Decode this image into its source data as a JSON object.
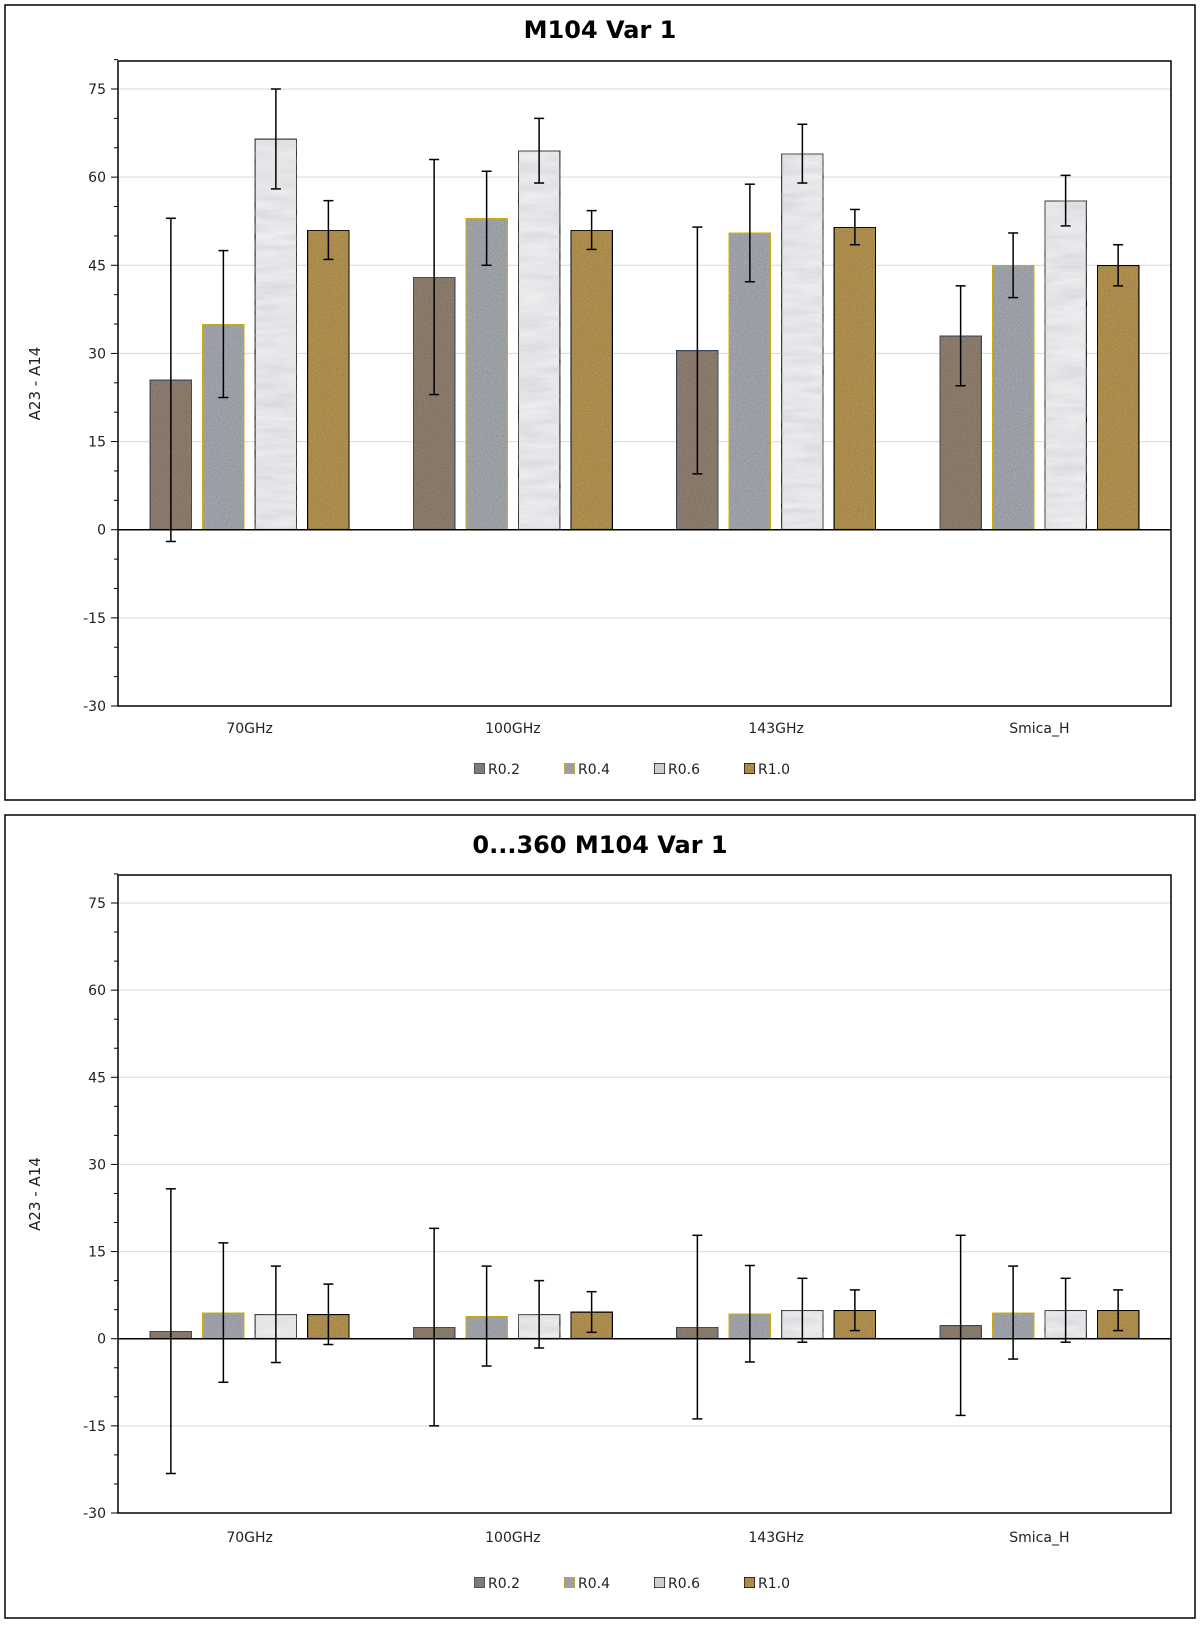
{
  "chart_data": [
    {
      "type": "bar",
      "title": "M104  Var 1",
      "ylabel": "A23 - A14",
      "xlabel": "",
      "ylim": [
        -30,
        80
      ],
      "yticks": [
        -30,
        -15,
        0,
        15,
        30,
        45,
        60,
        75
      ],
      "grid": true,
      "legend_position": "bottom",
      "categories": [
        "70GHz",
        "100GHz",
        "143GHz",
        "Smica_H"
      ],
      "series": [
        {
          "name": "R0.2",
          "values": [
            25.5,
            43,
            30.5,
            33
          ],
          "errors": [
            27.5,
            20,
            21,
            8.5
          ]
        },
        {
          "name": "R0.4",
          "values": [
            35,
            53,
            50.5,
            45
          ],
          "errors": [
            12.5,
            8,
            8.3,
            5.5
          ]
        },
        {
          "name": "R0.6",
          "values": [
            66.5,
            64.5,
            64,
            56
          ],
          "errors": [
            8.5,
            5.5,
            5,
            4.3
          ]
        },
        {
          "name": "R1.0",
          "values": [
            51,
            51,
            51.5,
            45
          ],
          "errors": [
            5,
            3.3,
            3,
            3.5
          ]
        }
      ]
    },
    {
      "type": "bar",
      "title": "0...360  M104  Var 1",
      "ylabel": "A23 - A14",
      "xlabel": "",
      "ylim": [
        -30,
        80
      ],
      "yticks": [
        -30,
        -15,
        0,
        15,
        30,
        45,
        60,
        75
      ],
      "grid": true,
      "legend_position": "bottom",
      "categories": [
        "70GHz",
        "100GHz",
        "143GHz",
        "Smica_H"
      ],
      "series": [
        {
          "name": "R0.2",
          "values": [
            1.3,
            2,
            2,
            2.3
          ],
          "errors": [
            24.5,
            17,
            15.8,
            15.5
          ]
        },
        {
          "name": "R0.4",
          "values": [
            4.5,
            3.9,
            4.3,
            4.5
          ],
          "errors": [
            12,
            8.6,
            8.3,
            8
          ]
        },
        {
          "name": "R0.6",
          "values": [
            4.2,
            4.2,
            4.9,
            4.9
          ],
          "errors": [
            8.3,
            5.8,
            5.5,
            5.5
          ]
        },
        {
          "name": "R1.0",
          "values": [
            4.2,
            4.6,
            4.9,
            4.9
          ],
          "errors": [
            5.2,
            3.5,
            3.5,
            3.5
          ]
        }
      ]
    }
  ],
  "colors": {
    "R0.2": {
      "fill": "#9e8c7c",
      "stroke": "#44546a"
    },
    "R0.4": {
      "fill": "#b4b8c0",
      "stroke": "#f0c800"
    },
    "R0.6": {
      "fill": "#eceef0",
      "stroke": "#000000"
    },
    "R1.0": {
      "fill": "#c6a25a",
      "stroke": "#000000"
    }
  }
}
